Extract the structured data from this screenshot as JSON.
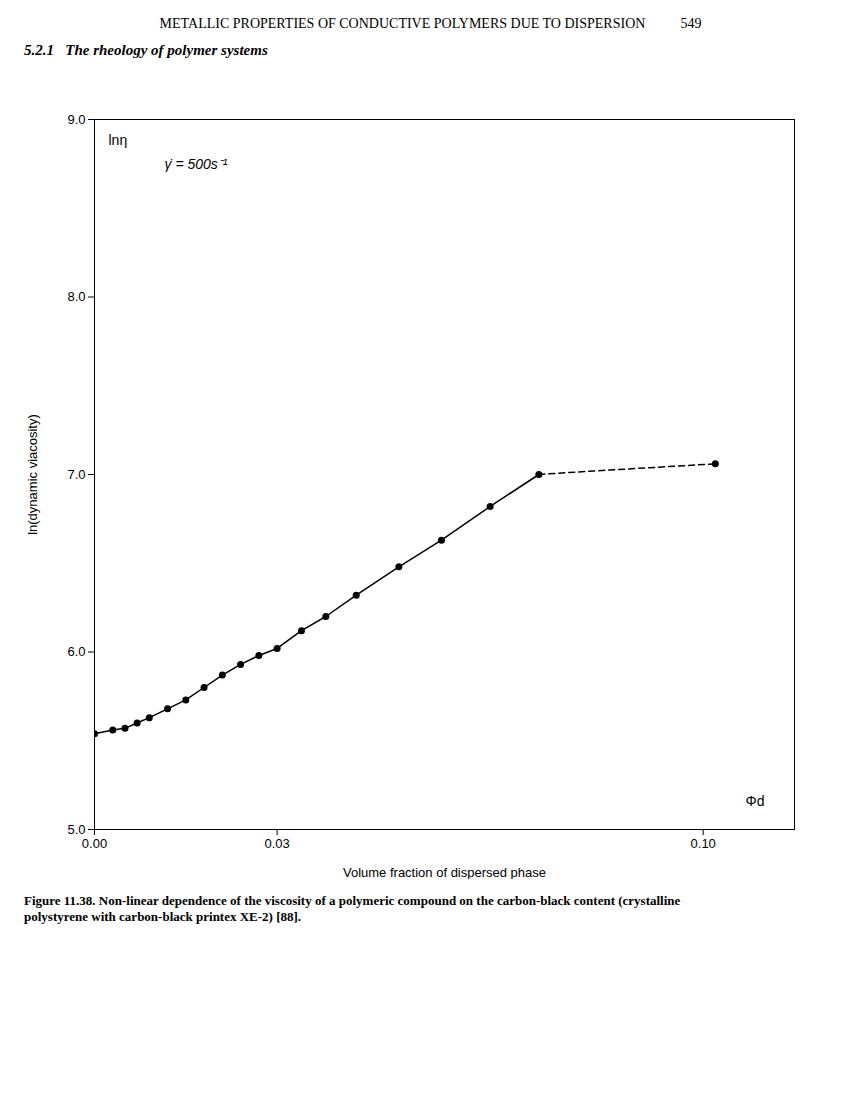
{
  "chart_data": {
    "type": "line",
    "title": "Figure 11.38. Non-linear dependence of the viscosity of a polymeric compound on the carbon-black content (crystalline\npolystyrene with carbon-black printex XE-2) [88].",
    "subtitle": "5.2.1   The rheology of polymer systems",
    "xlabel": "Volume fraction of dispersed phase",
    "ylabel": "ln(dynamic viacosity)",
    "annotations": [
      "METALLIC PROPERTIES OF CONDUCTIVE POLYMERS DUE TO DISPERSION          549",
      "γ̇ = 500s⁻¹",
      "lnη",
      "Φd"
    ],
    "xlim": [
      0.0,
      0.115
    ],
    "ylim": [
      5.0,
      9.0
    ],
    "xticks": [
      {
        "value": 0.0,
        "label": "0.00"
      },
      {
        "value": 0.03,
        "label": "0.03"
      },
      {
        "value": 0.1,
        "label": "0.10"
      }
    ],
    "yticks": [
      {
        "value": 5.0,
        "label": "5.0"
      },
      {
        "value": 6.0,
        "label": "6.0"
      },
      {
        "value": 7.0,
        "label": "7.0"
      },
      {
        "value": 8.0,
        "label": "8.0"
      },
      {
        "value": 9.0,
        "label": "9.0"
      }
    ],
    "grid": false,
    "series": [
      {
        "type": "line",
        "line_style": "solid",
        "color": "#000000",
        "x": [
          0.0,
          0.003,
          0.005,
          0.007,
          0.009,
          0.012,
          0.015,
          0.018,
          0.021,
          0.024,
          0.027,
          0.03,
          0.034,
          0.038,
          0.043,
          0.05,
          0.057,
          0.065,
          0.073
        ],
        "values": [
          5.54,
          5.56,
          5.57,
          5.6,
          5.63,
          5.68,
          5.73,
          5.8,
          5.87,
          5.93,
          5.98,
          6.02,
          6.12,
          6.2,
          6.32,
          6.48,
          6.63,
          6.82,
          7.0
        ]
      },
      {
        "type": "line",
        "line_style": "dashed",
        "color": "#000000",
        "x": [
          0.073,
          0.082,
          0.092,
          0.102
        ],
        "values": [
          7.0,
          7.02,
          7.04,
          7.06
        ]
      },
      {
        "type": "scatter",
        "marker": "circle",
        "color": "#000000",
        "x": [
          0.0,
          0.003,
          0.005,
          0.007,
          0.009,
          0.012,
          0.015,
          0.018,
          0.021,
          0.024,
          0.027,
          0.03,
          0.034,
          0.038,
          0.043,
          0.05,
          0.057,
          0.065,
          0.073,
          0.102
        ],
        "values": [
          5.54,
          5.56,
          5.57,
          5.6,
          5.63,
          5.68,
          5.73,
          5.8,
          5.87,
          5.93,
          5.98,
          6.02,
          6.12,
          6.2,
          6.32,
          6.48,
          6.63,
          6.82,
          7.0,
          7.06
        ]
      }
    ]
  }
}
